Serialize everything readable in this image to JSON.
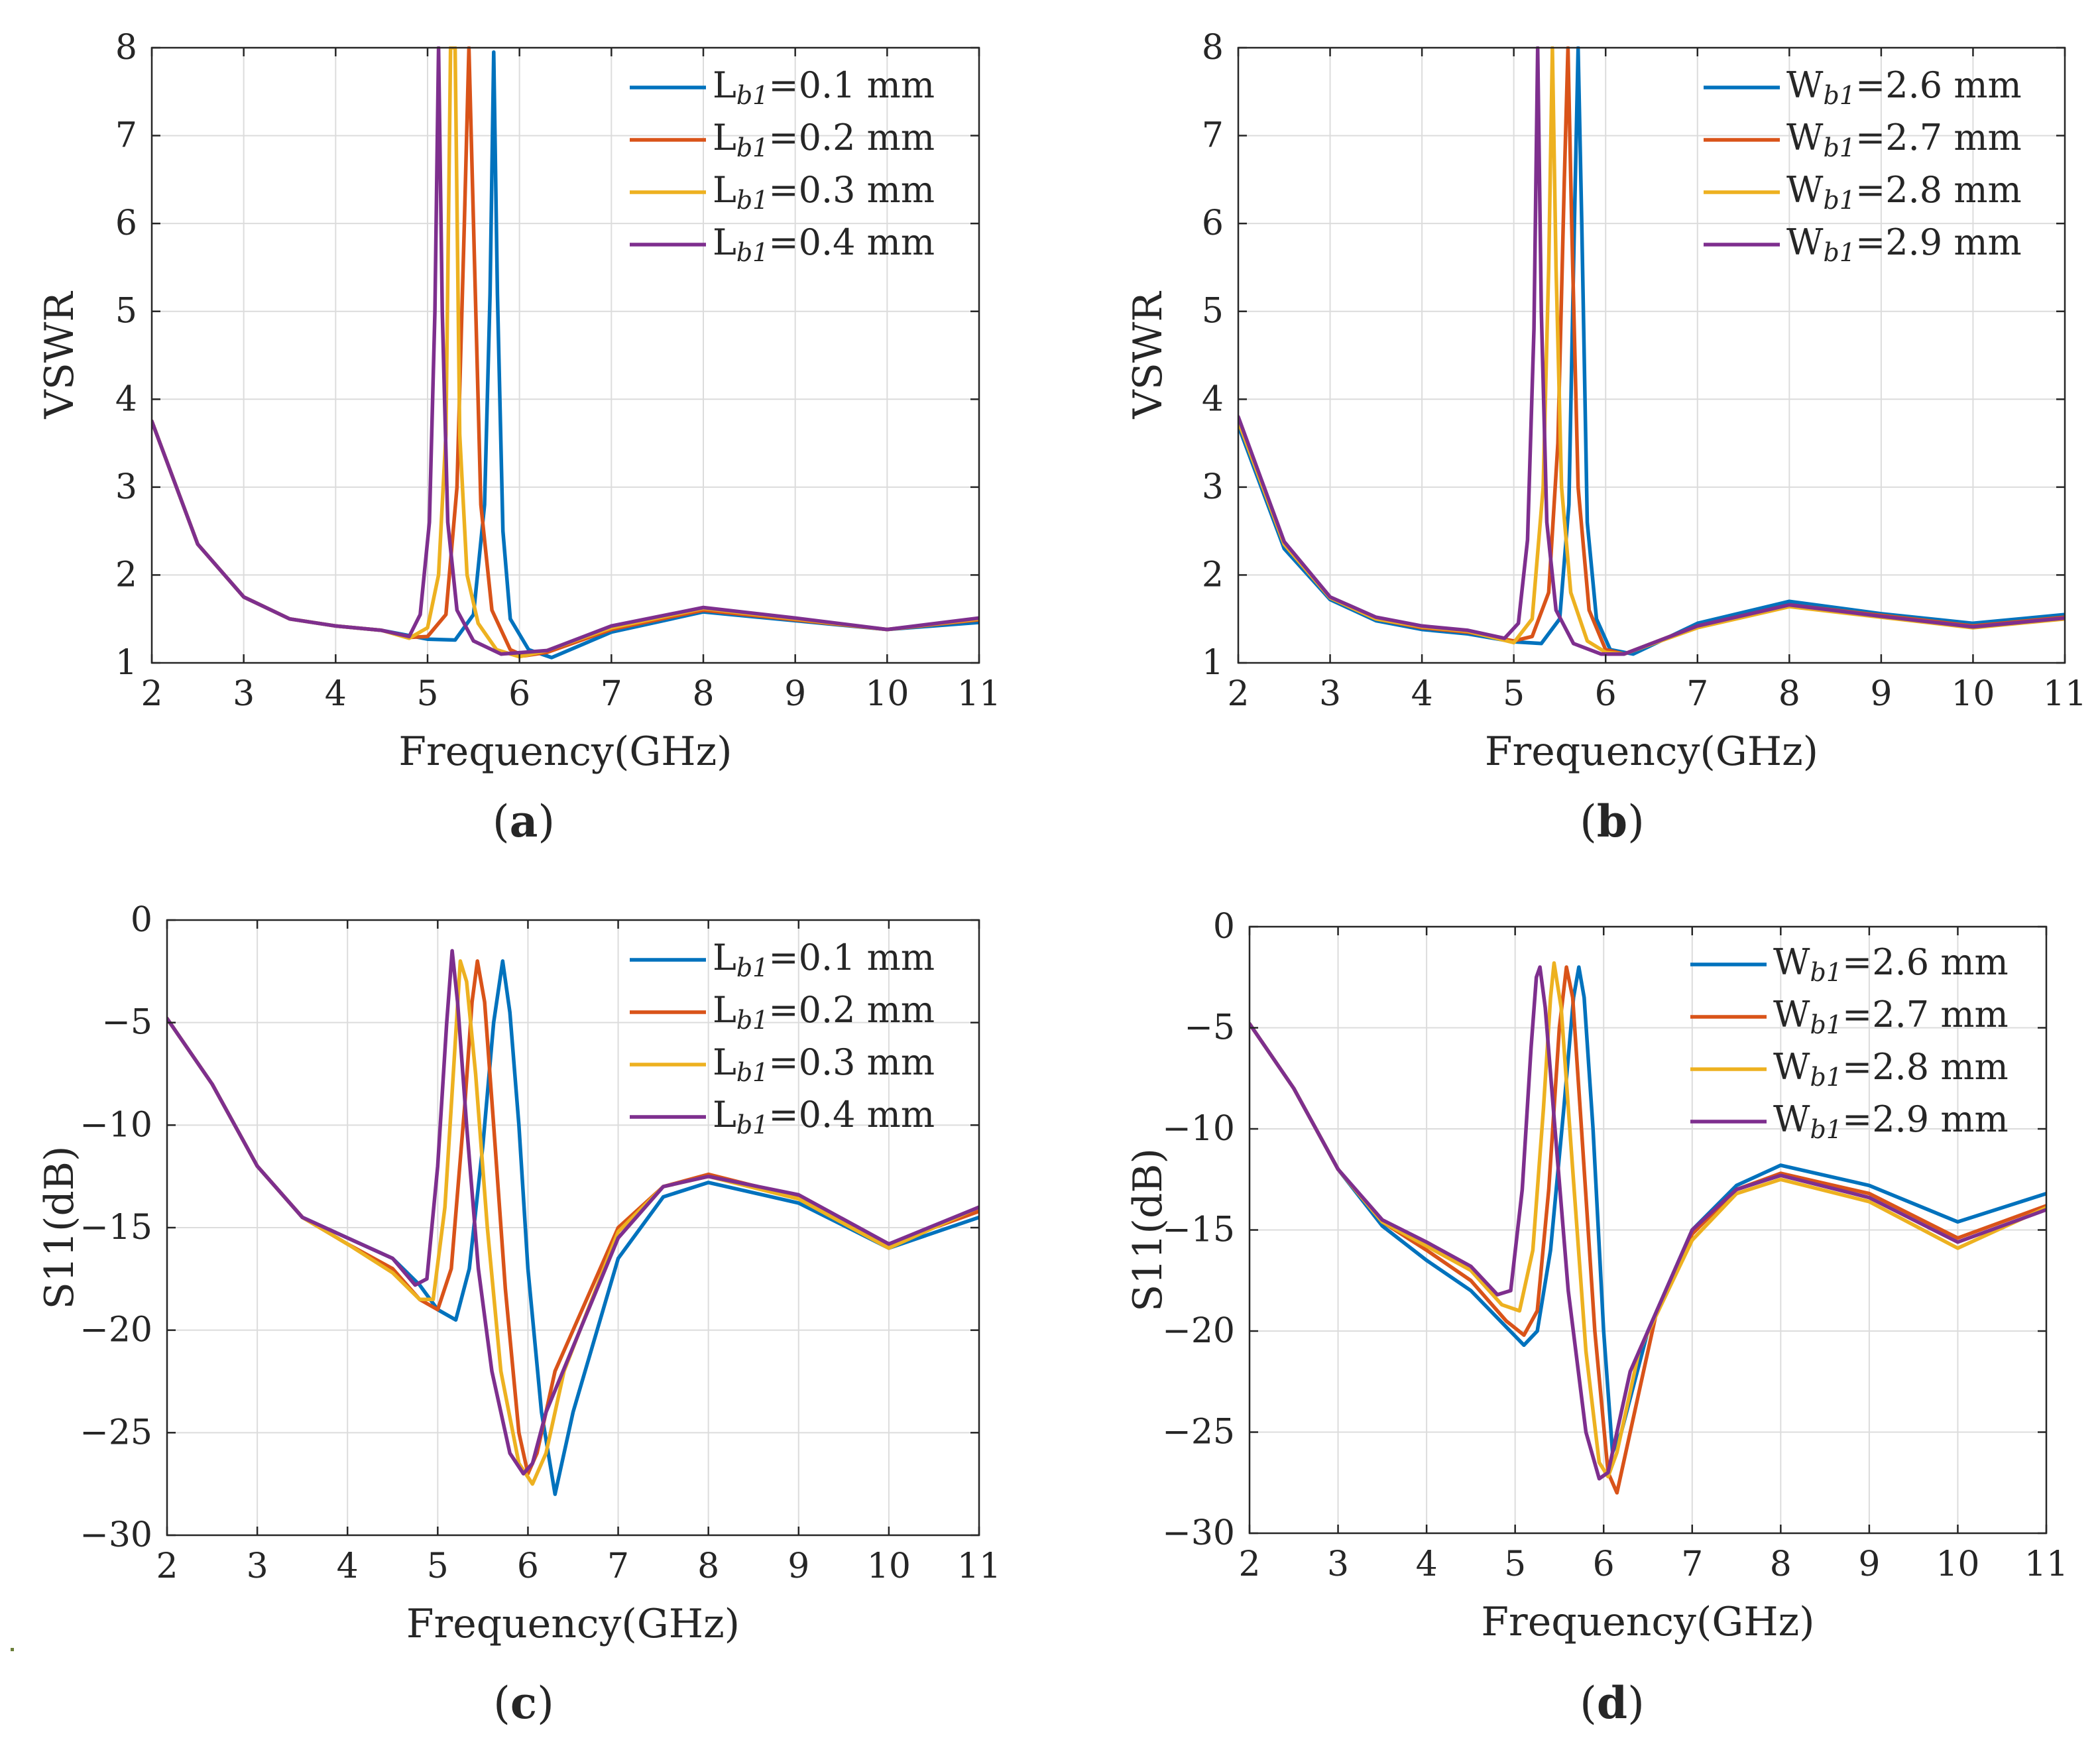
{
  "colors": {
    "series": [
      "#0072BD",
      "#D95319",
      "#EDB120",
      "#7E2F8E"
    ],
    "grid": "#dcdcdc",
    "axis": "#262626"
  },
  "chart_data": [
    {
      "id": "a",
      "caption": "(a)",
      "caption_letter": "a",
      "type": "line",
      "xlabel": "Frequency(GHz)",
      "ylabel": "VSWR",
      "xlim": [
        2,
        11
      ],
      "ylim": [
        1,
        8
      ],
      "xticks": [
        2,
        3,
        4,
        5,
        6,
        7,
        8,
        9,
        10,
        11
      ],
      "yticks": [
        1,
        2,
        3,
        4,
        5,
        6,
        7,
        8
      ],
      "ytick_labels": [
        "1",
        "2",
        "3",
        "4",
        "5",
        "6",
        "7",
        "8"
      ],
      "grid": true,
      "legend_position": "top-right",
      "series": [
        {
          "name": "Lb1=0.1 mm",
          "legend_base": "L",
          "legend_sub": "b1",
          "legend_value": "=0.1 mm",
          "x": [
            2,
            2.5,
            3,
            3.5,
            4,
            4.5,
            5,
            5.3,
            5.5,
            5.62,
            5.68,
            5.72,
            5.76,
            5.82,
            5.9,
            6.1,
            6.35,
            7,
            8,
            9,
            10,
            11
          ],
          "y": [
            3.75,
            2.35,
            1.75,
            1.5,
            1.42,
            1.37,
            1.27,
            1.26,
            1.55,
            2.8,
            5.2,
            7.95,
            5.2,
            2.5,
            1.5,
            1.15,
            1.06,
            1.35,
            1.58,
            1.48,
            1.38,
            1.46
          ]
        },
        {
          "name": "Lb1=0.2 mm",
          "legend_base": "L",
          "legend_sub": "b1",
          "legend_value": "=0.2 mm",
          "x": [
            2,
            2.5,
            3,
            3.5,
            4,
            4.5,
            4.8,
            5.0,
            5.2,
            5.32,
            5.4,
            5.45,
            5.5,
            5.58,
            5.7,
            5.9,
            6.05,
            6.3,
            7,
            8,
            9,
            10,
            11
          ],
          "y": [
            3.75,
            2.35,
            1.75,
            1.5,
            1.42,
            1.37,
            1.29,
            1.3,
            1.55,
            3.0,
            6.0,
            8.0,
            6.0,
            2.8,
            1.6,
            1.15,
            1.08,
            1.12,
            1.38,
            1.6,
            1.49,
            1.38,
            1.49
          ]
        },
        {
          "name": "Lb1=0.3 mm",
          "legend_base": "L",
          "legend_sub": "b1",
          "legend_value": "=0.3 mm",
          "x": [
            2,
            2.5,
            3,
            3.5,
            4,
            4.5,
            4.8,
            5.0,
            5.12,
            5.2,
            5.25,
            5.3,
            5.35,
            5.43,
            5.55,
            5.75,
            6.0,
            6.3,
            7,
            8,
            9,
            10,
            11
          ],
          "y": [
            3.75,
            2.35,
            1.75,
            1.5,
            1.42,
            1.37,
            1.28,
            1.4,
            2.0,
            3.6,
            8.0,
            8.0,
            3.6,
            2.0,
            1.45,
            1.15,
            1.07,
            1.14,
            1.4,
            1.62,
            1.5,
            1.38,
            1.5
          ]
        },
        {
          "name": "Lb1=0.4 mm",
          "legend_base": "L",
          "legend_sub": "b1",
          "legend_value": "=0.4 mm",
          "x": [
            2,
            2.5,
            3,
            3.5,
            4,
            4.5,
            4.8,
            4.92,
            5.02,
            5.08,
            5.12,
            5.16,
            5.22,
            5.32,
            5.5,
            5.8,
            6.3,
            7,
            8,
            9,
            10,
            11
          ],
          "y": [
            3.75,
            2.35,
            1.75,
            1.5,
            1.42,
            1.37,
            1.3,
            1.55,
            2.6,
            5.0,
            8.0,
            5.0,
            2.6,
            1.6,
            1.25,
            1.1,
            1.14,
            1.42,
            1.63,
            1.51,
            1.38,
            1.51
          ]
        }
      ]
    },
    {
      "id": "b",
      "caption": "(b)",
      "caption_letter": "b",
      "type": "line",
      "xlabel": "Frequency(GHz)",
      "ylabel": "VSWR",
      "xlim": [
        2,
        11
      ],
      "ylim": [
        1,
        8
      ],
      "xticks": [
        2,
        3,
        4,
        5,
        6,
        7,
        8,
        9,
        10,
        11
      ],
      "yticks": [
        1,
        2,
        3,
        4,
        5,
        6,
        7,
        8
      ],
      "ytick_labels": [
        "1",
        "2",
        "3",
        "4",
        "5",
        "6",
        "7",
        "8"
      ],
      "grid": true,
      "legend_position": "top-right",
      "series": [
        {
          "name": "Wb1=2.6 mm",
          "legend_base": "W",
          "legend_sub": "b1",
          "legend_value": "=2.6 mm",
          "x": [
            2,
            2.5,
            3,
            3.5,
            4,
            4.5,
            5,
            5.3,
            5.5,
            5.6,
            5.66,
            5.7,
            5.74,
            5.8,
            5.9,
            6.05,
            6.3,
            7,
            8,
            9,
            10,
            11
          ],
          "y": [
            3.7,
            2.3,
            1.72,
            1.48,
            1.38,
            1.33,
            1.24,
            1.22,
            1.5,
            2.8,
            6.0,
            8.0,
            6.0,
            2.6,
            1.5,
            1.15,
            1.1,
            1.45,
            1.7,
            1.56,
            1.45,
            1.55
          ]
        },
        {
          "name": "Wb1=2.7 mm",
          "legend_base": "W",
          "legend_sub": "b1",
          "legend_value": "=2.7 mm",
          "x": [
            2,
            2.5,
            3,
            3.5,
            4,
            4.5,
            5,
            5.2,
            5.38,
            5.48,
            5.55,
            5.59,
            5.63,
            5.7,
            5.82,
            6.0,
            6.2,
            7,
            8,
            9,
            10,
            11
          ],
          "y": [
            3.75,
            2.35,
            1.74,
            1.5,
            1.4,
            1.35,
            1.25,
            1.3,
            1.8,
            3.5,
            6.5,
            8.0,
            6.0,
            3.0,
            1.6,
            1.15,
            1.1,
            1.42,
            1.66,
            1.54,
            1.42,
            1.52
          ]
        },
        {
          "name": "Wb1=2.8 mm",
          "legend_base": "W",
          "legend_sub": "b1",
          "legend_value": "=2.8 mm",
          "x": [
            2,
            2.5,
            3,
            3.5,
            4,
            4.5,
            5,
            5.2,
            5.32,
            5.38,
            5.42,
            5.46,
            5.52,
            5.62,
            5.8,
            6.0,
            6.2,
            7,
            8,
            9,
            10,
            11
          ],
          "y": [
            3.75,
            2.35,
            1.74,
            1.5,
            1.41,
            1.36,
            1.23,
            1.5,
            3.0,
            5.5,
            8.0,
            5.5,
            3.0,
            1.8,
            1.25,
            1.12,
            1.1,
            1.4,
            1.64,
            1.52,
            1.4,
            1.5
          ]
        },
        {
          "name": "Wb1=2.9 mm",
          "legend_base": "W",
          "legend_sub": "b1",
          "legend_value": "=2.9 mm",
          "x": [
            2,
            2.5,
            3,
            3.5,
            4,
            4.5,
            4.9,
            5.05,
            5.15,
            5.22,
            5.26,
            5.3,
            5.36,
            5.46,
            5.65,
            5.95,
            6.2,
            7,
            8,
            9,
            10,
            11
          ],
          "y": [
            3.8,
            2.38,
            1.75,
            1.52,
            1.42,
            1.37,
            1.28,
            1.45,
            2.4,
            4.8,
            8.0,
            5.0,
            2.6,
            1.6,
            1.22,
            1.1,
            1.1,
            1.42,
            1.66,
            1.53,
            1.41,
            1.51
          ]
        }
      ]
    },
    {
      "id": "c",
      "caption": "(c)",
      "caption_letter": "c",
      "type": "line",
      "xlabel": "Frequency(GHz)",
      "ylabel": "S11(dB)",
      "xlim": [
        2,
        11
      ],
      "ylim": [
        -30,
        0
      ],
      "xticks": [
        2,
        3,
        4,
        5,
        6,
        7,
        8,
        9,
        10,
        11
      ],
      "yticks": [
        0,
        -5,
        -10,
        -15,
        -20,
        -25,
        -30
      ],
      "ytick_labels": [
        "0",
        "−5",
        "−10",
        "−15",
        "−20",
        "−25",
        "−30"
      ],
      "grid": true,
      "legend_position": "top-right",
      "series": [
        {
          "name": "Lb1=0.1 mm",
          "legend_base": "L",
          "legend_sub": "b1",
          "legend_value": "=0.1 mm",
          "x": [
            2,
            2.5,
            3,
            3.5,
            4,
            4.5,
            4.8,
            5.0,
            5.2,
            5.35,
            5.5,
            5.62,
            5.72,
            5.8,
            5.9,
            6.0,
            6.15,
            6.3,
            6.5,
            7,
            7.5,
            8,
            9,
            10,
            11
          ],
          "y": [
            -4.8,
            -8.0,
            -12.0,
            -14.5,
            -15.5,
            -16.5,
            -17.8,
            -19.0,
            -19.5,
            -17.0,
            -11.0,
            -5.0,
            -2.0,
            -4.5,
            -10.0,
            -17.0,
            -24.0,
            -28.0,
            -24.0,
            -16.5,
            -13.5,
            -12.8,
            -13.8,
            -16.0,
            -14.5
          ]
        },
        {
          "name": "Lb1=0.2 mm",
          "legend_base": "L",
          "legend_sub": "b1",
          "legend_value": "=0.2 mm",
          "x": [
            2,
            2.5,
            3,
            3.5,
            4,
            4.5,
            4.8,
            5.0,
            5.15,
            5.3,
            5.38,
            5.44,
            5.52,
            5.62,
            5.75,
            5.9,
            6.0,
            6.1,
            6.3,
            7,
            7.5,
            8,
            9,
            10,
            11
          ],
          "y": [
            -4.8,
            -8.0,
            -12.0,
            -14.5,
            -15.8,
            -17.0,
            -18.5,
            -19.0,
            -17.0,
            -9.0,
            -4.0,
            -2.0,
            -4.0,
            -10.0,
            -18.0,
            -25.0,
            -27.0,
            -26.0,
            -22.0,
            -15.0,
            -13.0,
            -12.4,
            -13.5,
            -15.8,
            -14.2
          ]
        },
        {
          "name": "Lb1=0.3 mm",
          "legend_base": "L",
          "legend_sub": "b1",
          "legend_value": "=0.3 mm",
          "x": [
            2,
            2.5,
            3,
            3.5,
            4,
            4.5,
            4.8,
            4.95,
            5.08,
            5.18,
            5.25,
            5.32,
            5.42,
            5.55,
            5.7,
            5.9,
            6.05,
            6.2,
            6.4,
            7,
            7.5,
            8,
            9,
            10,
            11
          ],
          "y": [
            -4.8,
            -8.0,
            -12.0,
            -14.5,
            -15.8,
            -17.2,
            -18.5,
            -18.5,
            -14.0,
            -7.0,
            -2.0,
            -3.0,
            -7.5,
            -15.0,
            -22.0,
            -26.5,
            -27.5,
            -26.0,
            -22.0,
            -15.2,
            -13.0,
            -12.5,
            -13.6,
            -16.0,
            -14.0
          ]
        },
        {
          "name": "Lb1=0.4 mm",
          "legend_base": "L",
          "legend_sub": "b1",
          "legend_value": "=0.4 mm",
          "x": [
            2,
            2.5,
            3,
            3.5,
            4,
            4.5,
            4.75,
            4.88,
            5.0,
            5.1,
            5.16,
            5.22,
            5.32,
            5.45,
            5.6,
            5.8,
            5.95,
            6.05,
            6.2,
            7,
            7.5,
            8,
            9,
            10,
            11
          ],
          "y": [
            -4.8,
            -8.0,
            -12.0,
            -14.5,
            -15.5,
            -16.5,
            -17.8,
            -17.5,
            -12.0,
            -5.0,
            -1.5,
            -4.0,
            -10.0,
            -17.0,
            -22.0,
            -26.0,
            -27.0,
            -26.5,
            -24.0,
            -15.5,
            -13.0,
            -12.5,
            -13.4,
            -15.8,
            -14.0
          ]
        }
      ]
    },
    {
      "id": "d",
      "caption": "(d)",
      "caption_letter": "d",
      "type": "line",
      "xlabel": "Frequency(GHz)",
      "ylabel": "S11(dB)",
      "xlim": [
        2,
        11
      ],
      "ylim": [
        -30,
        0
      ],
      "xticks": [
        2,
        3,
        4,
        5,
        6,
        7,
        8,
        9,
        10,
        11
      ],
      "yticks": [
        0,
        -5,
        -10,
        -15,
        -20,
        -25,
        -30
      ],
      "ytick_labels": [
        "0",
        "−5",
        "−10",
        "−15",
        "−20",
        "−25",
        "−30"
      ],
      "grid": true,
      "legend_position": "top-right",
      "series": [
        {
          "name": "Wb1=2.6 mm",
          "legend_base": "W",
          "legend_sub": "b1",
          "legend_value": "=2.6 mm",
          "x": [
            2,
            2.5,
            3,
            3.5,
            4,
            4.5,
            4.9,
            5.1,
            5.25,
            5.4,
            5.55,
            5.66,
            5.72,
            5.78,
            5.88,
            6.0,
            6.1,
            6.2,
            6.5,
            7,
            7.5,
            8,
            9,
            10,
            11
          ],
          "y": [
            -4.8,
            -8.0,
            -12.0,
            -14.8,
            -16.5,
            -18.0,
            -19.8,
            -20.7,
            -20.0,
            -16.0,
            -9.0,
            -3.5,
            -2.0,
            -3.5,
            -10.0,
            -20.0,
            -26.0,
            -25.0,
            -20.0,
            -15.0,
            -12.8,
            -11.8,
            -12.8,
            -14.6,
            -13.2
          ]
        },
        {
          "name": "Wb1=2.7 mm",
          "legend_base": "W",
          "legend_sub": "b1",
          "legend_value": "=2.7 mm",
          "x": [
            2,
            2.5,
            3,
            3.5,
            4,
            4.5,
            4.9,
            5.1,
            5.25,
            5.38,
            5.5,
            5.58,
            5.65,
            5.75,
            5.9,
            6.05,
            6.15,
            6.3,
            6.6,
            7,
            7.5,
            8,
            9,
            10,
            11
          ],
          "y": [
            -4.8,
            -8.0,
            -12.0,
            -14.6,
            -16.0,
            -17.5,
            -19.5,
            -20.2,
            -19.0,
            -13.0,
            -5.0,
            -2.0,
            -3.5,
            -10.0,
            -20.0,
            -27.0,
            -28.0,
            -25.0,
            -19.0,
            -15.2,
            -13.0,
            -12.2,
            -13.2,
            -15.4,
            -13.8
          ]
        },
        {
          "name": "Wb1=2.8 mm",
          "legend_base": "W",
          "legend_sub": "b1",
          "legend_value": "=2.8 mm",
          "x": [
            2,
            2.5,
            3,
            3.5,
            4,
            4.5,
            4.85,
            5.05,
            5.2,
            5.32,
            5.4,
            5.44,
            5.52,
            5.65,
            5.8,
            5.95,
            6.05,
            6.15,
            6.4,
            7,
            7.5,
            8,
            9,
            10,
            11
          ],
          "y": [
            -4.8,
            -8.0,
            -12.0,
            -14.6,
            -15.8,
            -17.0,
            -18.7,
            -19.0,
            -16.0,
            -9.0,
            -3.5,
            -1.8,
            -4.0,
            -12.0,
            -21.0,
            -26.5,
            -27.2,
            -26.0,
            -21.0,
            -15.5,
            -13.2,
            -12.5,
            -13.6,
            -15.9,
            -13.9
          ]
        },
        {
          "name": "Wb1=2.9 mm",
          "legend_base": "W",
          "legend_sub": "b1",
          "legend_value": "=2.9 mm",
          "x": [
            2,
            2.5,
            3,
            3.5,
            4,
            4.5,
            4.8,
            4.95,
            5.08,
            5.18,
            5.24,
            5.28,
            5.34,
            5.45,
            5.6,
            5.8,
            5.95,
            6.05,
            6.3,
            7,
            7.5,
            8,
            9,
            10,
            11
          ],
          "y": [
            -4.8,
            -8.0,
            -12.0,
            -14.5,
            -15.6,
            -16.8,
            -18.2,
            -18.0,
            -13.0,
            -6.0,
            -2.5,
            -2.0,
            -4.0,
            -10.0,
            -18.0,
            -25.0,
            -27.3,
            -27.0,
            -22.0,
            -15.0,
            -13.0,
            -12.3,
            -13.4,
            -15.6,
            -14.0
          ]
        }
      ]
    }
  ]
}
